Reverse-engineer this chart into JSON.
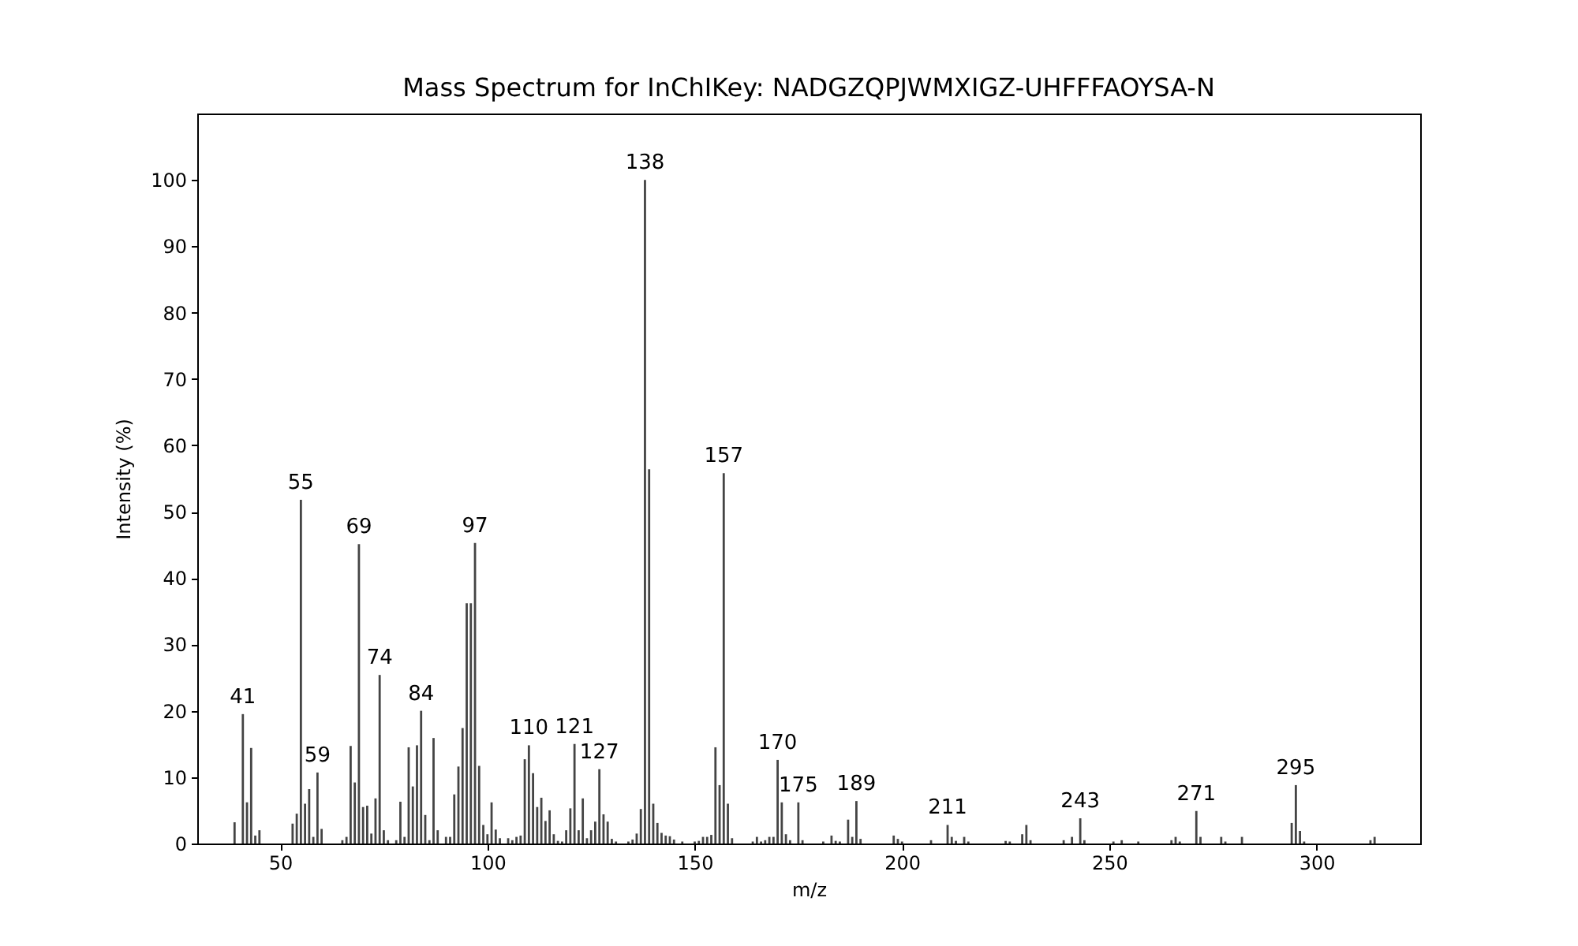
{
  "chart_data": {
    "type": "bar",
    "title": "Mass Spectrum for InChIKey: NADGZQPJWMXIGZ-UHFFFAOYSA-N",
    "xlabel": "m/z",
    "ylabel": "Intensity (%)",
    "x": [
      39,
      41,
      42,
      43,
      44,
      45,
      53,
      54,
      55,
      56,
      57,
      58,
      59,
      60,
      65,
      66,
      67,
      68,
      69,
      70,
      71,
      72,
      73,
      74,
      75,
      76,
      78,
      79,
      80,
      81,
      82,
      83,
      84,
      85,
      86,
      87,
      88,
      90,
      91,
      92,
      93,
      94,
      95,
      96,
      97,
      98,
      99,
      100,
      101,
      102,
      103,
      105,
      106,
      107,
      108,
      109,
      110,
      111,
      112,
      113,
      114,
      115,
      116,
      117,
      118,
      119,
      120,
      121,
      122,
      123,
      124,
      125,
      126,
      127,
      128,
      129,
      130,
      131,
      134,
      135,
      136,
      137,
      138,
      139,
      140,
      141,
      142,
      143,
      144,
      145,
      147,
      150,
      151,
      152,
      153,
      154,
      155,
      156,
      157,
      158,
      159,
      164,
      165,
      166,
      167,
      168,
      169,
      170,
      171,
      172,
      173,
      175,
      176,
      181,
      183,
      184,
      185,
      187,
      188,
      189,
      190,
      198,
      199,
      200,
      207,
      211,
      212,
      213,
      215,
      216,
      225,
      226,
      229,
      230,
      231,
      239,
      241,
      243,
      244,
      251,
      253,
      257,
      265,
      266,
      267,
      271,
      272,
      277,
      278,
      282,
      294,
      295,
      296,
      297,
      313,
      314
    ],
    "values": [
      3.2,
      19.5,
      6.2,
      14.4,
      1.2,
      2,
      3,
      4.5,
      51.8,
      6,
      8.2,
      1,
      10.7,
      2.2,
      0.5,
      1,
      14.7,
      9.2,
      45.1,
      5.5,
      5.7,
      1.5,
      6.8,
      25.4,
      2,
      0.5,
      0.5,
      6.3,
      1,
      14.5,
      8.6,
      14.8,
      20,
      4.3,
      0.5,
      15.9,
      2,
      1,
      1,
      7.4,
      11.6,
      17.4,
      36.2,
      36.2,
      45.3,
      11.7,
      2.8,
      1.4,
      6.2,
      2.1,
      0.8,
      0.8,
      0.5,
      1,
      1.2,
      12.7,
      14.8,
      10.6,
      5.5,
      6.9,
      3.4,
      5,
      1.4,
      0.4,
      0.3,
      2,
      5.3,
      15,
      2,
      6.8,
      0.8,
      2,
      3.3,
      11.2,
      4.4,
      3.3,
      0.7,
      0.3,
      0.3,
      0.6,
      1.5,
      5.2,
      100,
      56.4,
      6,
      3.1,
      1.6,
      1.2,
      1.1,
      0.6,
      0.3,
      0.3,
      0.4,
      1,
      1,
      1.3,
      14.5,
      8.8,
      55.8,
      6,
      0.8,
      0.3,
      1,
      0.3,
      0.5,
      1,
      1,
      12.6,
      6.2,
      1.4,
      0.5,
      6.2,
      0.5,
      0.3,
      1.2,
      0.4,
      0.3,
      3.6,
      1,
      6.4,
      0.7,
      1.2,
      0.7,
      0.3,
      0.5,
      2.8,
      1,
      0.4,
      1,
      0.3,
      0.4,
      0.3,
      1.4,
      2.8,
      0.5,
      0.5,
      1,
      3.8,
      0.5,
      0.3,
      0.5,
      0.3,
      0.5,
      1,
      0.3,
      4.9,
      1,
      1,
      0.3,
      1,
      3.1,
      8.8,
      1.9,
      0.3,
      0.5,
      1
    ],
    "color": "#444444",
    "xlim": [
      30,
      325
    ],
    "xticks": [
      50,
      100,
      150,
      200,
      250,
      300
    ],
    "ylim": [
      0,
      110
    ],
    "yticks": [
      0,
      10,
      20,
      30,
      40,
      50,
      60,
      70,
      80,
      90,
      100
    ],
    "grid": false,
    "annotations": [
      {
        "text": "41",
        "x": 41,
        "y": 19.5
      },
      {
        "text": "55",
        "x": 55,
        "y": 51.8
      },
      {
        "text": "59",
        "x": 59,
        "y": 10.7
      },
      {
        "text": "69",
        "x": 69,
        "y": 45.1
      },
      {
        "text": "74",
        "x": 74,
        "y": 25.4
      },
      {
        "text": "84",
        "x": 84,
        "y": 20
      },
      {
        "text": "97",
        "x": 97,
        "y": 45.3
      },
      {
        "text": "110",
        "x": 110,
        "y": 14.8
      },
      {
        "text": "121",
        "x": 121,
        "y": 15
      },
      {
        "text": "127",
        "x": 127,
        "y": 11.2
      },
      {
        "text": "138",
        "x": 138,
        "y": 100
      },
      {
        "text": "157",
        "x": 157,
        "y": 55.8
      },
      {
        "text": "170",
        "x": 170,
        "y": 12.6
      },
      {
        "text": "175",
        "x": 175,
        "y": 6.2
      },
      {
        "text": "189",
        "x": 189,
        "y": 6.4
      },
      {
        "text": "211",
        "x": 211,
        "y": 2.8
      },
      {
        "text": "243",
        "x": 243,
        "y": 3.8
      },
      {
        "text": "271",
        "x": 271,
        "y": 4.9
      },
      {
        "text": "295",
        "x": 295,
        "y": 8.8
      }
    ]
  }
}
